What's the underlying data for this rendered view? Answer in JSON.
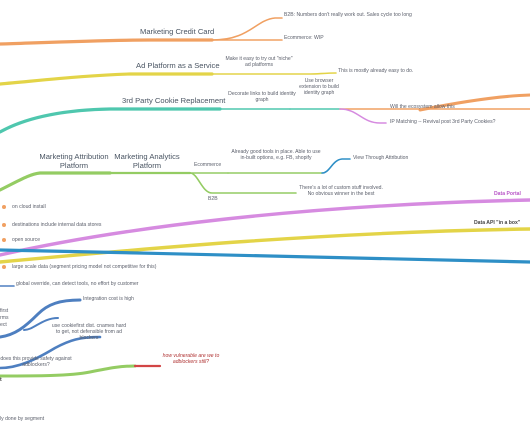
{
  "colors": {
    "orange": "#F0A062",
    "yellow": "#E3D448",
    "teal": "#4FC7AE",
    "green": "#94CC63",
    "blue": "#2E8FC6",
    "purple": "#D68BE0",
    "steel": "#4E7FC0",
    "red": "#D24545",
    "dots": "#F0A062"
  },
  "nodes": {
    "marketing_credit_card": "Marketing Credit Card",
    "b2b_numbers": "B2B: Numbers don't really work out. Sales cycle too long",
    "ecommerce_wip": "Ecommerce: WIP",
    "ad_platform_service": "Ad Platform as a Service",
    "make_easy_try": "Make it easy to try out \"niche\" ad platforms",
    "mostly_easy": "This is mostly already easy to do.",
    "third_party_cookie": "3rd Party Cookie Replacement",
    "decorate_links": "Decorate links to build identity graph",
    "use_browser_ext": "Use browser extension to build identity graph",
    "will_ecosystem": "Will the ecosystem allow this",
    "ip_matching": "IP Matching -- Revival post 3rd Party Cookies?",
    "marketing_attribution": "Marketing Attribution Platform",
    "marketing_analytics": "Marketing Analytics Platform",
    "ecommerce": "Ecommerce",
    "already_good_tools": "Already good tools in place. Able to use in-built options, e.g. FB, shopify",
    "view_through": "View Through Attribution",
    "b2b": "B2B",
    "custom_stuff": "There's a lot of custom stuff involved. No obvious winner in the best",
    "on_cloud_install": "on cloud install",
    "destinations_internal": "destinations include internal data stores",
    "open_source": "open source",
    "data_portal": "Data Portal",
    "data_api_box": "Data API \"in a box\"",
    "large_scale": "large scale data (segment pricing model not competitive for this)",
    "global_override": "global override, can detect tools, no effort by customer",
    "first_frag": "first",
    "rms_frag": "rms",
    "ect_frag": "ect",
    "integration_cost": "Integration cost is high",
    "use_cookiefirst": "use cookiefirst dist. cnames hard to get, not defensible from ad blockers",
    "safety_question": "does this provide safety against adblockers?",
    "how_vulnerable": "how vulnerable are we to adblockers still?",
    "t_frag": "t",
    "done_by_segment": "ly done by segment"
  }
}
